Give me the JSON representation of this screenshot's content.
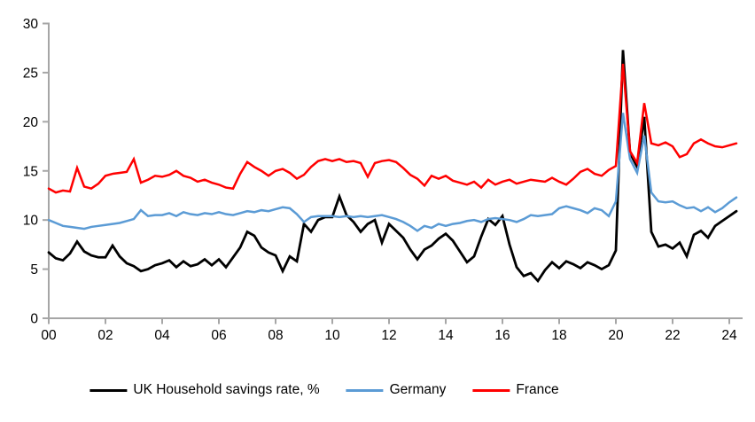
{
  "chart_data": {
    "type": "line",
    "title": "",
    "xlabel": "",
    "ylabel": "",
    "ylim": [
      0,
      30
    ],
    "y_ticks": [
      0,
      5,
      10,
      15,
      20,
      25,
      30
    ],
    "x_tick_labels": [
      "00",
      "02",
      "04",
      "06",
      "08",
      "10",
      "12",
      "14",
      "16",
      "18",
      "20",
      "22",
      "24"
    ],
    "x_start": "2000Q1",
    "x_end": "2024Q2",
    "frequency": "quarterly",
    "grid": false,
    "legend_position": "bottom",
    "axis_color": "#a6a6a6",
    "tick_label_color": "#000000",
    "series": [
      {
        "name": "UK Household savings rate, %",
        "color": "#000000",
        "width": 2.8,
        "values": [
          6.7,
          6.1,
          5.9,
          6.6,
          7.8,
          6.8,
          6.4,
          6.2,
          6.2,
          7.4,
          6.3,
          5.6,
          5.3,
          4.8,
          5.0,
          5.4,
          5.6,
          5.9,
          5.2,
          5.8,
          5.3,
          5.5,
          6.0,
          5.4,
          6.0,
          5.2,
          6.2,
          7.2,
          8.8,
          8.4,
          7.2,
          6.7,
          6.4,
          4.8,
          6.3,
          5.8,
          9.6,
          8.8,
          10.0,
          10.3,
          10.3,
          12.4,
          10.5,
          9.8,
          8.8,
          9.6,
          10.0,
          7.7,
          9.6,
          8.9,
          8.2,
          7.0,
          6.0,
          7.0,
          7.4,
          8.1,
          8.6,
          7.9,
          6.8,
          5.7,
          6.3,
          8.3,
          10.1,
          9.5,
          10.4,
          7.5,
          5.2,
          4.3,
          4.6,
          3.8,
          4.9,
          5.7,
          5.1,
          5.8,
          5.5,
          5.1,
          5.7,
          5.4,
          5.0,
          5.4,
          6.9,
          27.3,
          16.8,
          15.4,
          20.5,
          8.8,
          7.3,
          7.5,
          7.1,
          7.7,
          6.3,
          8.5,
          8.9,
          8.2,
          9.4,
          9.9,
          10.4,
          10.9
        ]
      },
      {
        "name": "Germany",
        "color": "#5b9bd5",
        "width": 2.5,
        "values": [
          10.0,
          9.7,
          9.4,
          9.3,
          9.2,
          9.1,
          9.3,
          9.4,
          9.5,
          9.6,
          9.7,
          9.9,
          10.1,
          11.0,
          10.4,
          10.5,
          10.5,
          10.7,
          10.4,
          10.8,
          10.6,
          10.5,
          10.7,
          10.6,
          10.8,
          10.6,
          10.5,
          10.7,
          10.9,
          10.8,
          11.0,
          10.9,
          11.1,
          11.3,
          11.2,
          10.6,
          9.8,
          10.3,
          10.4,
          10.4,
          10.4,
          10.3,
          10.4,
          10.3,
          10.4,
          10.3,
          10.4,
          10.5,
          10.3,
          10.1,
          9.8,
          9.4,
          8.9,
          9.4,
          9.2,
          9.6,
          9.4,
          9.6,
          9.7,
          9.9,
          10.0,
          9.8,
          10.1,
          10.2,
          10.1,
          10.0,
          9.8,
          10.1,
          10.5,
          10.4,
          10.5,
          10.6,
          11.2,
          11.4,
          11.2,
          11.0,
          10.7,
          11.2,
          11.0,
          10.4,
          11.9,
          20.9,
          16.2,
          14.8,
          18.6,
          12.8,
          11.9,
          11.8,
          11.9,
          11.5,
          11.2,
          11.3,
          10.9,
          11.3,
          10.8,
          11.2,
          11.8,
          12.3
        ]
      },
      {
        "name": "France",
        "color": "#ff0000",
        "width": 2.5,
        "values": [
          13.2,
          12.8,
          13.0,
          12.9,
          15.3,
          13.4,
          13.2,
          13.7,
          14.5,
          14.7,
          14.8,
          14.9,
          16.2,
          13.8,
          14.1,
          14.5,
          14.4,
          14.6,
          15.0,
          14.5,
          14.3,
          13.9,
          14.1,
          13.8,
          13.6,
          13.3,
          13.2,
          14.7,
          15.9,
          15.4,
          15.0,
          14.5,
          15.0,
          15.2,
          14.8,
          14.2,
          14.6,
          15.4,
          16.0,
          16.2,
          16.0,
          16.2,
          15.9,
          16.0,
          15.8,
          14.4,
          15.8,
          16.0,
          16.1,
          15.9,
          15.3,
          14.6,
          14.2,
          13.5,
          14.5,
          14.2,
          14.5,
          14.0,
          13.8,
          13.6,
          13.9,
          13.3,
          14.1,
          13.6,
          13.9,
          14.1,
          13.7,
          13.9,
          14.1,
          14.0,
          13.9,
          14.3,
          13.9,
          13.6,
          14.2,
          14.9,
          15.2,
          14.7,
          14.5,
          15.1,
          15.5,
          25.9,
          17.0,
          15.8,
          21.9,
          17.8,
          17.6,
          17.9,
          17.5,
          16.4,
          16.7,
          17.8,
          18.2,
          17.8,
          17.5,
          17.4,
          17.6,
          17.8
        ]
      }
    ]
  }
}
